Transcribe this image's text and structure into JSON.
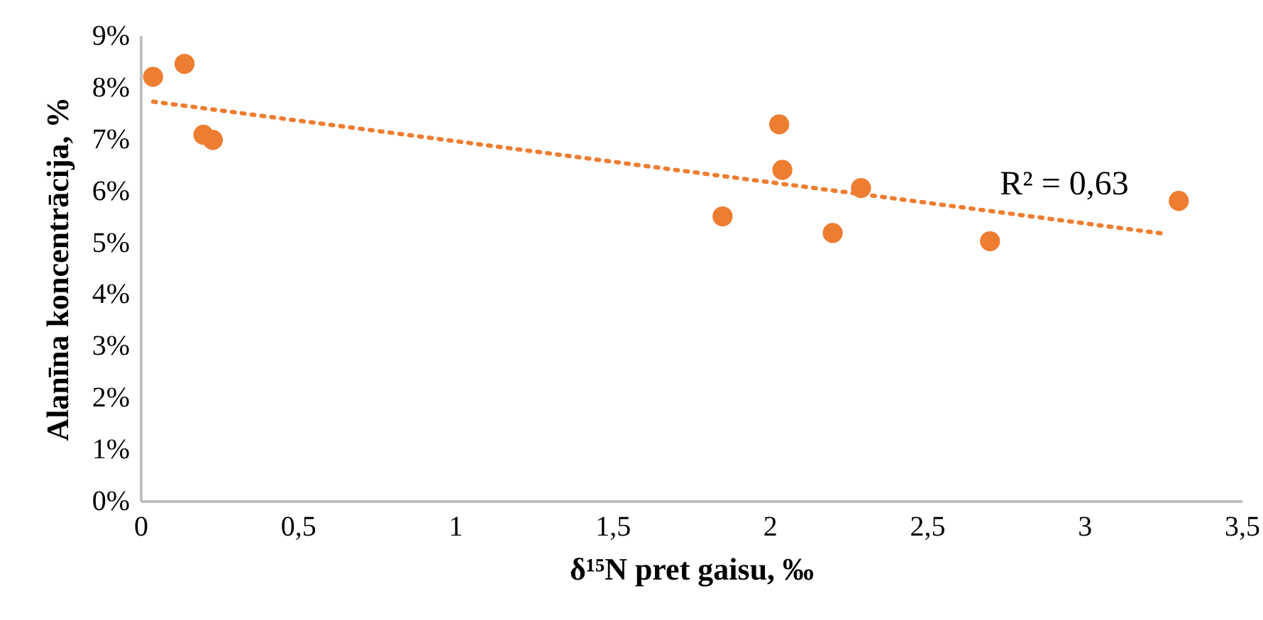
{
  "chart_data": {
    "type": "scatter",
    "xlabel": "δ¹⁵N pret gaisu, ‰",
    "ylabel": "Alanīna koncentrācija, %",
    "xlim": [
      0,
      3.5
    ],
    "ylim": [
      0,
      9
    ],
    "xticks": [
      0,
      {
        "value": 0.5,
        "label": "0,5"
      },
      1,
      {
        "value": 1.5,
        "label": "1,5"
      },
      2,
      {
        "value": 2.5,
        "label": "2,5"
      },
      3,
      {
        "value": 3.5,
        "label": "3,5"
      }
    ],
    "yticks": [
      {
        "value": 0,
        "label": "0%"
      },
      {
        "value": 1,
        "label": "1%"
      },
      {
        "value": 2,
        "label": "2%"
      },
      {
        "value": 3,
        "label": "3%"
      },
      {
        "value": 4,
        "label": "4%"
      },
      {
        "value": 5,
        "label": "5%"
      },
      {
        "value": 6,
        "label": "6%"
      },
      {
        "value": 7,
        "label": "7%"
      },
      {
        "value": 8,
        "label": "8%"
      },
      {
        "value": 9,
        "label": "9%"
      }
    ],
    "grid": false,
    "series": [
      {
        "color": "#ed7d31",
        "marker": "circle",
        "x": [
          0.04,
          0.14,
          0.2,
          0.23,
          1.85,
          2.03,
          2.04,
          2.2,
          2.29,
          2.7,
          3.3
        ],
        "values": [
          8.2,
          8.45,
          7.08,
          6.98,
          5.5,
          7.28,
          6.4,
          5.18,
          6.05,
          5.02,
          5.8
        ]
      },
      {
        "type": "line",
        "color": "#ed7d31",
        "line_style": "dotted",
        "x": [
          0.04,
          3.26
        ],
        "values": [
          7.72,
          5.16
        ]
      }
    ],
    "annotations": [
      "R² = 0,63"
    ]
  }
}
